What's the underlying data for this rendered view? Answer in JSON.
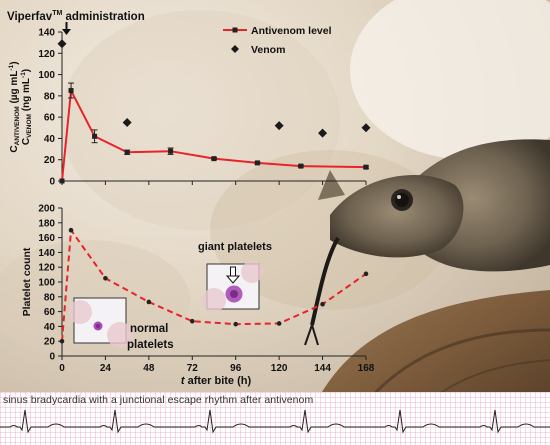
{
  "chart_data": [
    {
      "type": "line",
      "title": "",
      "ylabel_line1": "C",
      "ylabel_line1_sub": "ANTIVENOM",
      "ylabel_line1_unit": " (µg mL",
      "ylabel_line1_unit_sup": "-1",
      "ylabel_line1_end": ")",
      "ylabel_line2": "C",
      "ylabel_line2_sub": "VENOM",
      "ylabel_line2_unit": " (ng mL",
      "ylabel_line2_unit_sup": "-1",
      "ylabel_line2_end": ")",
      "ylim": [
        0,
        140
      ],
      "xlim": [
        0,
        168
      ],
      "yticks": [
        "0",
        "20",
        "40",
        "60",
        "80",
        "100",
        "120",
        "140"
      ],
      "annotation": {
        "text_main": "Viperfav",
        "text_sup": "TM",
        "text_end": " administration",
        "x": 5
      },
      "legend": {
        "placement": "top-right",
        "antivenom_label": "Antivenom level",
        "venom_label": "Venom"
      },
      "series": [
        {
          "name": "Antivenom level",
          "color": "#e8232a",
          "marker_color": "#222222",
          "x": [
            0,
            5,
            18,
            36,
            60,
            84,
            108,
            132,
            168
          ],
          "y": [
            0,
            85,
            42,
            27,
            28,
            21,
            17,
            14,
            13
          ],
          "err": [
            0,
            7,
            6,
            2,
            3,
            1,
            1,
            1,
            1
          ]
        },
        {
          "name": "Venom",
          "marker": "diamond",
          "color": "#1a1a1a",
          "x": [
            0,
            36,
            120,
            144,
            168
          ],
          "y": [
            129,
            55,
            52,
            45,
            50
          ]
        }
      ]
    },
    {
      "type": "line",
      "title": "",
      "ylabel": "Platelet count",
      "xlabel_italic": "t",
      "xlabel_rest": " after bite (h)",
      "ylim": [
        0,
        200
      ],
      "xlim": [
        0,
        168
      ],
      "yticks": [
        "0",
        "20",
        "40",
        "60",
        "80",
        "100",
        "120",
        "140",
        "160",
        "180",
        "200"
      ],
      "xticks": [
        "0",
        "24",
        "48",
        "72",
        "96",
        "120",
        "144",
        "168"
      ],
      "series": [
        {
          "name": "",
          "color": "#e8232a",
          "style": "dashed",
          "x": [
            0,
            5,
            24,
            48,
            72,
            96,
            120,
            144,
            168
          ],
          "y": [
            20,
            170,
            105,
            73,
            47,
            43,
            44,
            70,
            111
          ]
        }
      ],
      "insets": {
        "normal_label_line1": "normal",
        "normal_label_line2": "platelets",
        "giant_label": "giant platelets"
      }
    }
  ],
  "ecg": {
    "caption": "sinus bradycardia with a junctional escape rhythm after antivenom"
  },
  "colors": {
    "series": "#e8232a",
    "axis": "#222222"
  }
}
